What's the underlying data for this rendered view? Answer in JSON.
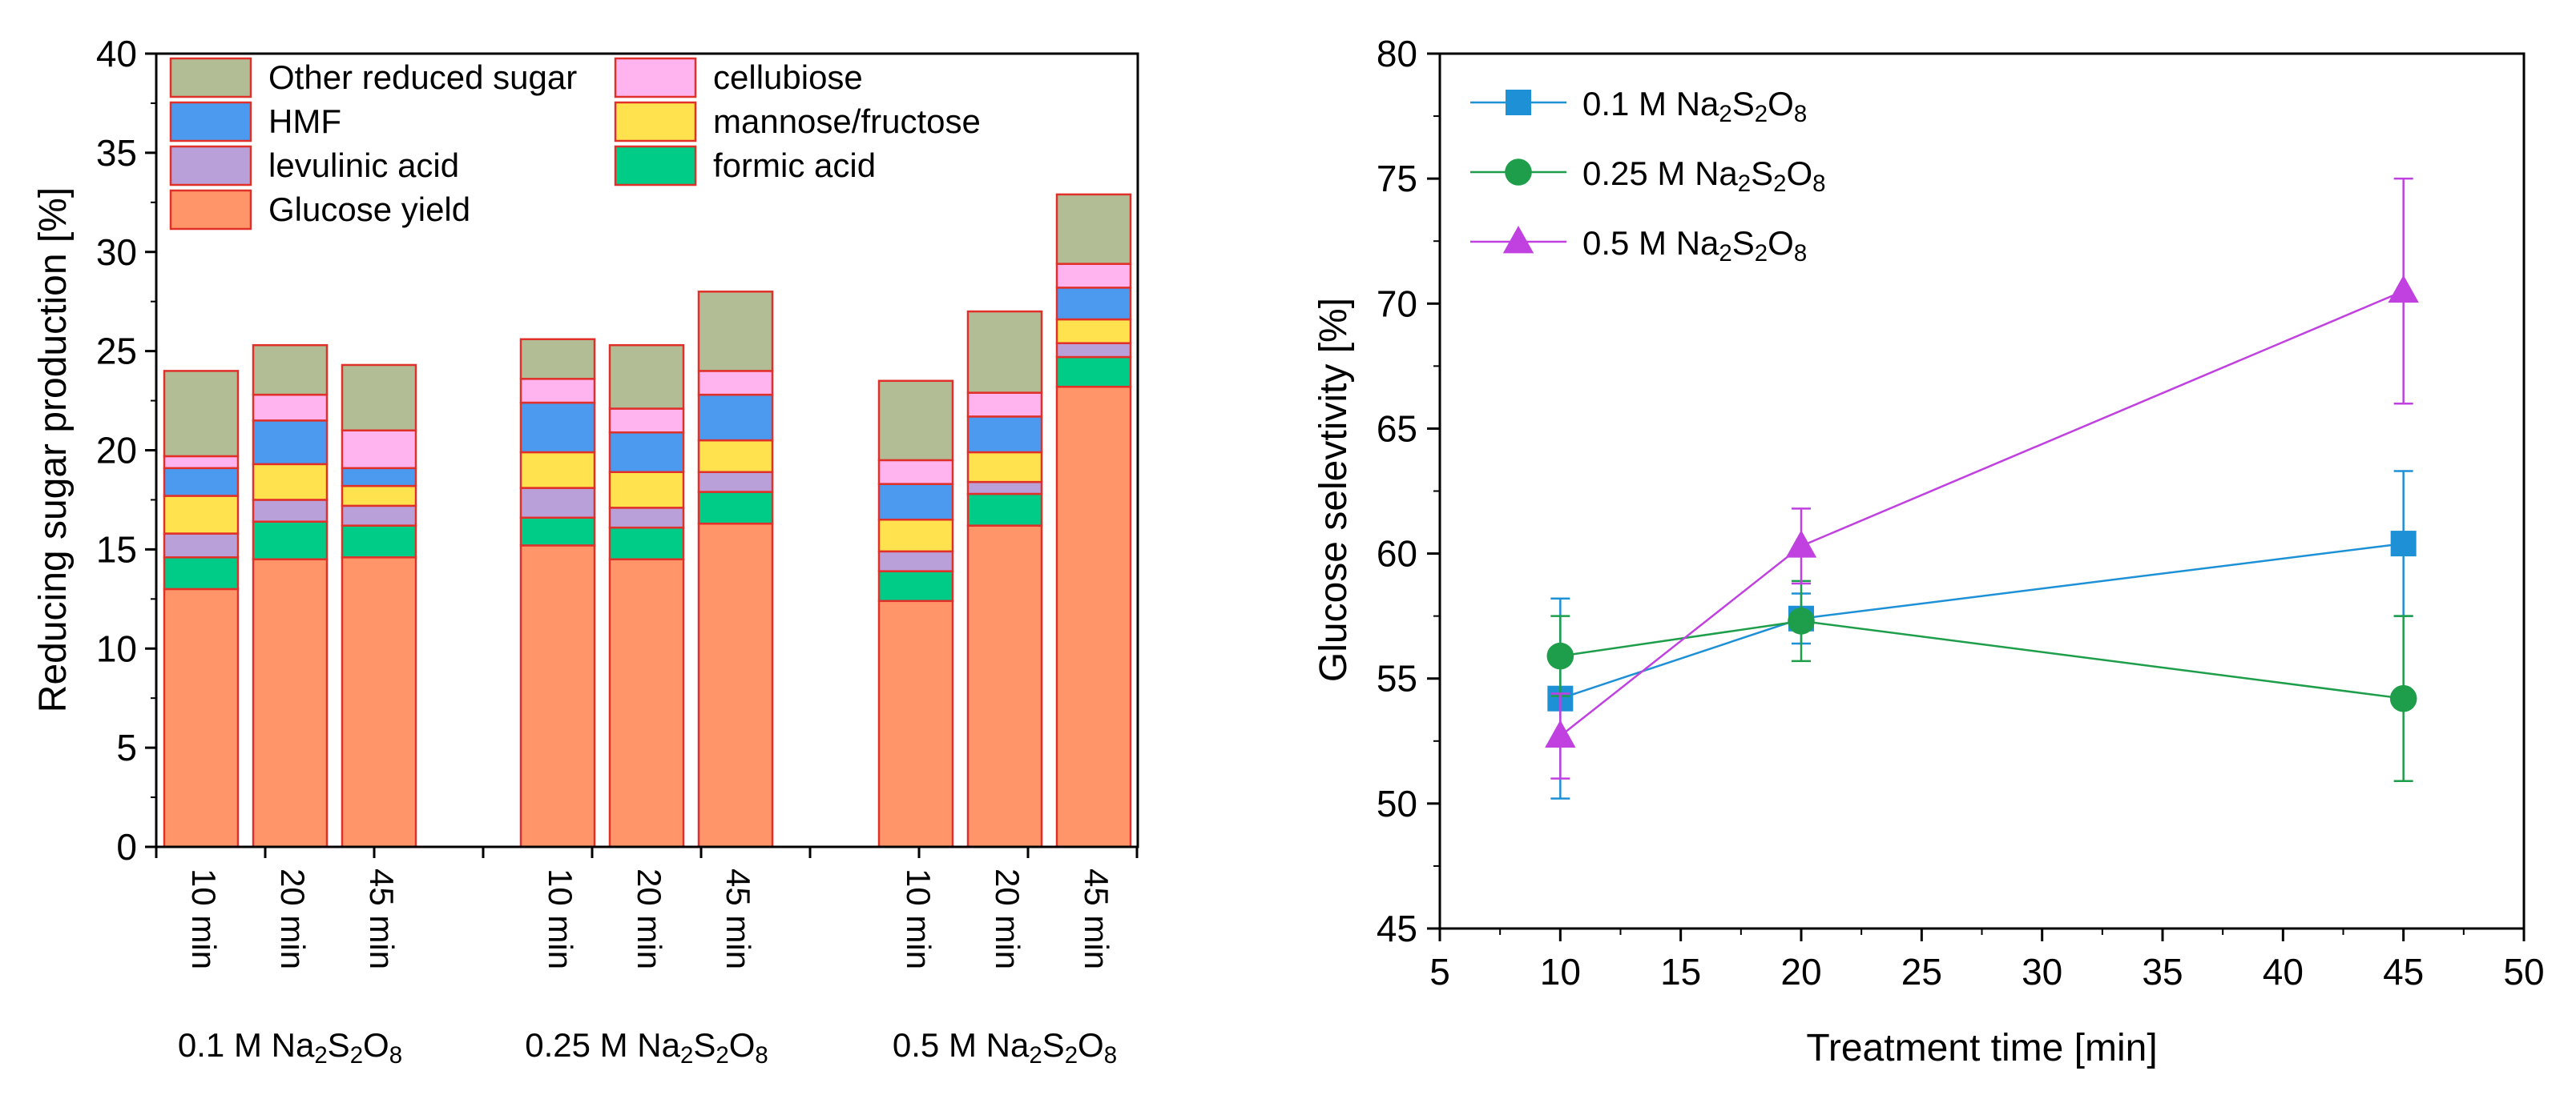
{
  "chart_data": [
    {
      "type": "bar",
      "stacked": true,
      "ylabel": "Reducing sugar production [%]",
      "ylim": [
        0,
        40
      ],
      "yticks": [
        0,
        5,
        10,
        15,
        20,
        25,
        30,
        35,
        40
      ],
      "groups": [
        {
          "label_parts": [
            "0.1 M Na",
            "2",
            "S",
            "2",
            "O",
            "8"
          ],
          "categories": [
            "10 min",
            "20 min",
            "45 min"
          ]
        },
        {
          "label_parts": [
            "0.25 M Na",
            "2",
            "S",
            "2",
            "O",
            "8"
          ],
          "categories": [
            "10 min",
            "20 min",
            "45 min"
          ]
        },
        {
          "label_parts": [
            "0.5 M Na",
            "2",
            "S",
            "2",
            "O",
            "8"
          ],
          "categories": [
            "10 min",
            "20 min",
            "45 min"
          ]
        }
      ],
      "series": [
        {
          "name": "Glucose yield",
          "color": "#FF9568",
          "values": [
            13.0,
            14.5,
            14.6,
            15.2,
            14.5,
            16.3,
            12.4,
            16.2,
            23.2
          ]
        },
        {
          "name": "formic acid",
          "color": "#00CC88",
          "values": [
            1.6,
            1.9,
            1.6,
            1.4,
            1.6,
            1.6,
            1.5,
            1.6,
            1.5
          ]
        },
        {
          "name": "levulinic acid",
          "color": "#B9A0D8",
          "values": [
            1.2,
            1.1,
            1.0,
            1.5,
            1.0,
            1.0,
            1.0,
            0.6,
            0.7
          ]
        },
        {
          "name": "mannose/fructose",
          "color": "#FFE24D",
          "values": [
            1.9,
            1.8,
            1.0,
            1.8,
            1.8,
            1.6,
            1.6,
            1.5,
            1.2
          ]
        },
        {
          "name": "HMF",
          "color": "#4B9AF0",
          "values": [
            1.4,
            2.2,
            0.9,
            2.5,
            2.0,
            2.3,
            1.8,
            1.8,
            1.6
          ]
        },
        {
          "name": "cellubiose",
          "color": "#FFB4F0",
          "values": [
            0.6,
            1.3,
            1.9,
            1.2,
            1.2,
            1.2,
            1.2,
            1.2,
            1.2
          ]
        },
        {
          "name": "Other reduced sugar",
          "color": "#B3BD95",
          "values": [
            4.3,
            2.5,
            3.3,
            2.0,
            3.2,
            4.0,
            4.0,
            4.1,
            3.5
          ]
        }
      ],
      "legend_order": [
        "Other reduced sugar",
        "cellubiose",
        "HMF",
        "mannose/fructose",
        "levulinic acid",
        "formic acid",
        "Glucose yield"
      ],
      "legend_placement": "top-left",
      "bar_edge_color": "#E0302A"
    },
    {
      "type": "line",
      "xlabel": "Treatment time [min]",
      "ylabel": "Glucose selevtivity [%]",
      "xlim": [
        5,
        50
      ],
      "ylim": [
        45,
        80
      ],
      "xticks": [
        5,
        10,
        15,
        20,
        25,
        30,
        35,
        40,
        45,
        50
      ],
      "yticks": [
        45,
        50,
        55,
        60,
        65,
        70,
        75,
        80
      ],
      "x": [
        10,
        20,
        45
      ],
      "legend_placement": "top-left",
      "series": [
        {
          "name_parts": [
            "0.1 M Na",
            "2",
            "S",
            "2",
            "O",
            "8"
          ],
          "color": "#1E90D6",
          "marker": "square",
          "y": [
            54.2,
            57.4,
            60.4
          ],
          "error": [
            4.0,
            1.0,
            2.9
          ]
        },
        {
          "name_parts": [
            "0.25 M Na",
            "2",
            "S",
            "2",
            "O",
            "8"
          ],
          "color": "#1E9E4A",
          "marker": "circle",
          "y": [
            55.9,
            57.3,
            54.2
          ],
          "error": [
            1.6,
            1.6,
            3.3
          ]
        },
        {
          "name_parts": [
            "0.5 M Na",
            "2",
            "S",
            "2",
            "O",
            "8"
          ],
          "color": "#C040E0",
          "marker": "triangle",
          "y": [
            52.7,
            60.3,
            70.5
          ],
          "error": [
            1.7,
            1.5,
            4.5
          ]
        }
      ]
    }
  ]
}
